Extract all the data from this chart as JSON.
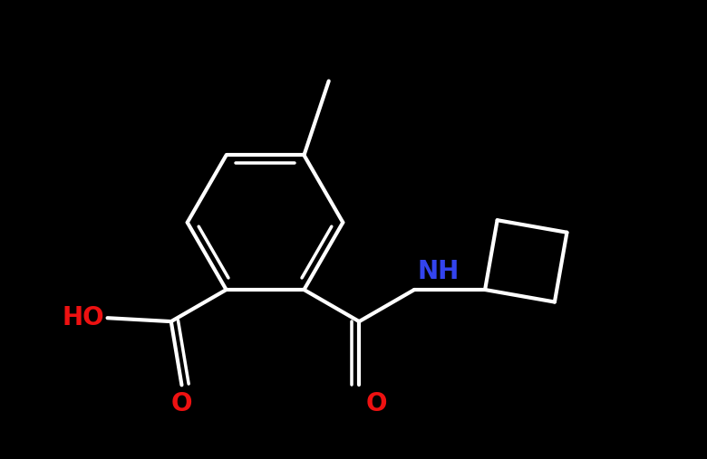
{
  "background_color": "#000000",
  "bond_color": "#ffffff",
  "NH_color": "#3344ee",
  "O_color": "#ee1111",
  "font_size": 20,
  "lw": 3.0,
  "figsize": [
    7.8,
    5.07
  ],
  "dpi": 100,
  "xlim": [
    0,
    10
  ],
  "ylim": [
    0,
    6.5
  ]
}
